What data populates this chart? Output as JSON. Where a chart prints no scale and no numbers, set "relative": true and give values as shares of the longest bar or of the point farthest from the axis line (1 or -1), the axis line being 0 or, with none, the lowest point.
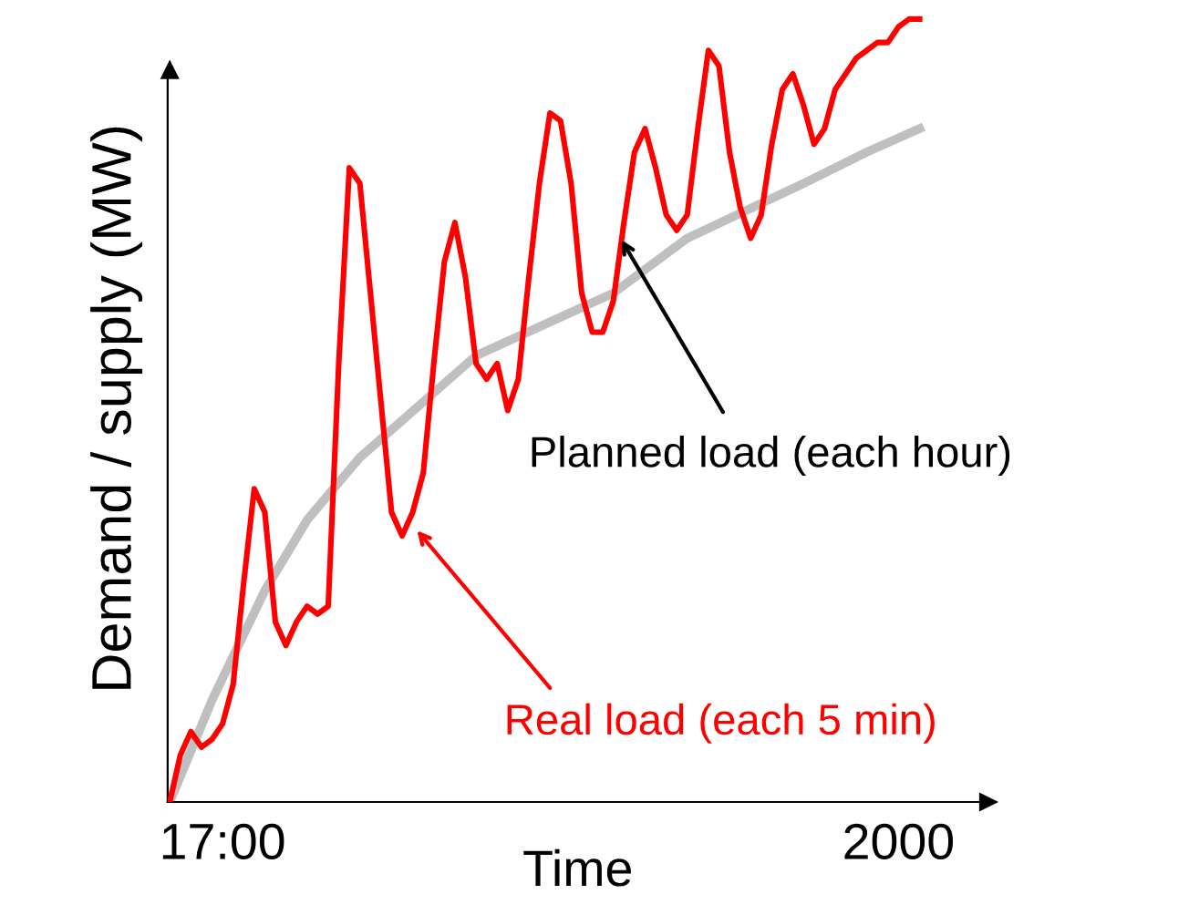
{
  "chart_data": {
    "type": "line",
    "relative": true,
    "xlabel": "Time",
    "ylabel": "Demand / supply (MW)",
    "categories": [
      null,
      null,
      null,
      null,
      null,
      "17:00",
      null,
      null,
      null,
      null,
      null,
      null,
      null,
      null,
      null,
      null,
      null,
      null,
      null,
      null,
      null,
      null,
      null,
      null,
      null,
      null,
      null,
      null,
      null,
      null,
      null,
      null,
      null,
      null,
      null,
      null,
      null,
      null,
      null,
      null,
      null,
      null,
      null,
      null,
      null,
      null,
      null,
      null,
      null,
      null,
      null,
      null,
      null,
      null,
      null,
      null,
      null,
      null,
      null,
      null,
      null,
      null,
      null,
      null,
      null,
      null,
      null,
      null,
      null,
      "2000",
      null,
      null
    ],
    "series": [
      {
        "color": "#ff0000",
        "values": [
          0,
          0.06,
          0.09,
          0.07,
          0.08,
          0.1,
          0.15,
          0.28,
          0.4,
          0.37,
          0.23,
          0.2,
          0.23,
          0.25,
          0.24,
          0.25,
          0.56,
          0.81,
          0.79,
          0.65,
          0.51,
          0.37,
          0.34,
          0.37,
          0.42,
          0.56,
          0.69,
          0.74,
          0.67,
          0.56,
          0.54,
          0.56,
          0.5,
          0.54,
          0.67,
          0.79,
          0.88,
          0.87,
          0.79,
          0.65,
          0.6,
          0.6,
          0.64,
          0.74,
          0.83,
          0.86,
          0.81,
          0.75,
          0.73,
          0.75,
          0.86,
          0.96,
          0.94,
          0.83,
          0.76,
          0.72,
          0.75,
          0.84,
          0.91,
          0.93,
          0.89,
          0.84,
          0.86,
          0.91,
          0.93,
          0.95,
          0.96,
          0.97,
          0.97,
          0.99,
          1,
          1
        ]
      },
      {
        "color": "#bfbfbf",
        "values": [
          0,
          null,
          null,
          null,
          0.13,
          null,
          null,
          null,
          null,
          0.27,
          null,
          null,
          null,
          0.36,
          null,
          null,
          null,
          null,
          0.44,
          null,
          null,
          null,
          null,
          null,
          null,
          null,
          null,
          null,
          null,
          0.57,
          null,
          null,
          null,
          null,
          null,
          null,
          null,
          null,
          null,
          null,
          null,
          null,
          0.65,
          null,
          null,
          null,
          null,
          null,
          null,
          0.72,
          null,
          null,
          null,
          null,
          null,
          null,
          null,
          null,
          null,
          null,
          0.79,
          null,
          null,
          null,
          null,
          null,
          0.83,
          null,
          null,
          null,
          null,
          0.86
        ]
      }
    ],
    "annotations": [
      "Real load (each 5 min)",
      "Planned load (each hour)"
    ],
    "grid": false,
    "legend": false
  }
}
